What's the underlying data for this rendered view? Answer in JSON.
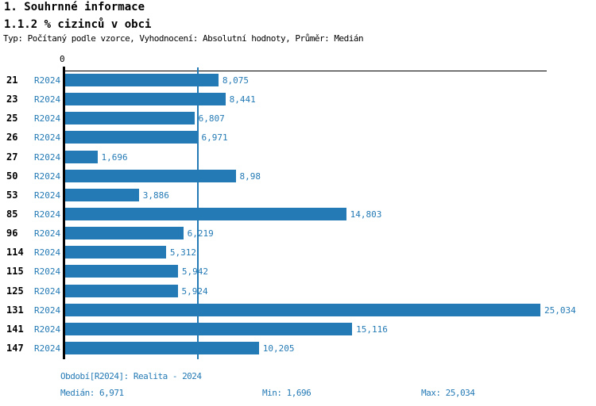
{
  "header": {
    "title1": "1. Souhrnné informace",
    "title2": "1.1.2 % cizinců v obci",
    "meta": "Typ: Počítaný podle vzorce, Vyhodnocení: Absolutní hodnoty, Průměr: Medián"
  },
  "chart_data": {
    "type": "bar",
    "orientation": "horizontal",
    "axis_zero_label": "0",
    "period_label": "R2024",
    "categories": [
      "21",
      "23",
      "25",
      "26",
      "27",
      "50",
      "53",
      "85",
      "96",
      "114",
      "115",
      "125",
      "131",
      "141",
      "147"
    ],
    "values": [
      8.075,
      8.441,
      6.807,
      6.971,
      1.696,
      8.98,
      3.886,
      14.803,
      6.219,
      5.312,
      5.942,
      5.924,
      25.034,
      15.116,
      10.205
    ],
    "value_labels": [
      "8,075",
      "8,441",
      "6,807",
      "6,971",
      "1,696",
      "8,98",
      "3,886",
      "14,803",
      "6,219",
      "5,312",
      "5,942",
      "5,924",
      "25,034",
      "15,116",
      "10,205"
    ],
    "median": 6.971,
    "xlim": [
      0,
      25.4
    ],
    "grid": false,
    "legend": "none",
    "bar_color": "#247ab5",
    "text_color": "#247ab5",
    "median_line_color": "#247ab5"
  },
  "footer": {
    "period_info": "Období[R2024]: Realita - 2024",
    "median_label": "Medián: 6,971",
    "min_label": "Min: 1,696",
    "max_label": "Max: 25,034"
  }
}
